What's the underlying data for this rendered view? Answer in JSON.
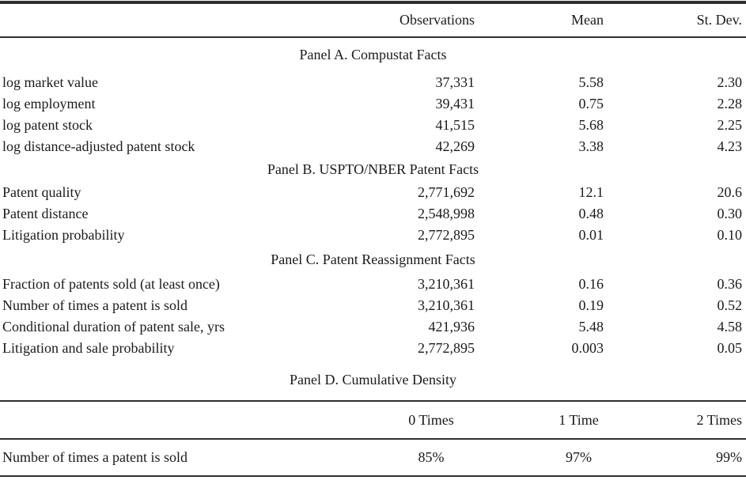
{
  "colors": {
    "ink": "#1a1a1a",
    "rule": "#2f2f2f"
  },
  "table": {
    "header": {
      "observations": "Observations",
      "mean": "Mean",
      "st_dev": "St. Dev."
    },
    "panels": [
      {
        "title": "Panel A. Compustat Facts",
        "rows": [
          {
            "label": "log market value",
            "observations": "37,331",
            "mean": "5.58",
            "st_dev": "2.30"
          },
          {
            "label": "log employment",
            "observations": "39,431",
            "mean": "0.75",
            "st_dev": "2.28"
          },
          {
            "label": "log patent stock",
            "observations": "41,515",
            "mean": "5.68",
            "st_dev": "2.25"
          },
          {
            "label": "log distance-adjusted patent stock",
            "observations": "42,269",
            "mean": "3.38",
            "st_dev": "4.23"
          }
        ]
      },
      {
        "title": "Panel B. USPTO/NBER Patent Facts",
        "rows": [
          {
            "label": "Patent quality",
            "observations": "2,771,692",
            "mean": "12.1",
            "st_dev": "20.6"
          },
          {
            "label": "Patent distance",
            "observations": "2,548,998",
            "mean": "0.48",
            "st_dev": "0.30"
          },
          {
            "label": "Litigation probability",
            "observations": "2,772,895",
            "mean": "0.01",
            "st_dev": "0.10"
          }
        ]
      },
      {
        "title": "Panel C. Patent Reassignment Facts",
        "rows": [
          {
            "label": "Fraction of patents sold (at least once)",
            "observations": "3,210,361",
            "mean": "0.16",
            "st_dev": "0.36"
          },
          {
            "label": "Number of times a patent is sold",
            "observations": "3,210,361",
            "mean": "0.19",
            "st_dev": "0.52"
          },
          {
            "label": "Conditional duration of patent sale, yrs",
            "observations": "421,936",
            "mean": "5.48",
            "st_dev": "4.58"
          },
          {
            "label": "Litigation and sale probability",
            "observations": "2,772,895",
            "mean": "0.003",
            "st_dev": "0.05"
          }
        ]
      }
    ],
    "panel_d": {
      "title": "Panel D. Cumulative Density",
      "columns": {
        "c0": "0 Times",
        "c1": "1 Time",
        "c2": "2 Times"
      },
      "row": {
        "label": "Number of times a patent is sold",
        "v0": "85%",
        "v1": "97%",
        "v2": "99%"
      }
    }
  }
}
